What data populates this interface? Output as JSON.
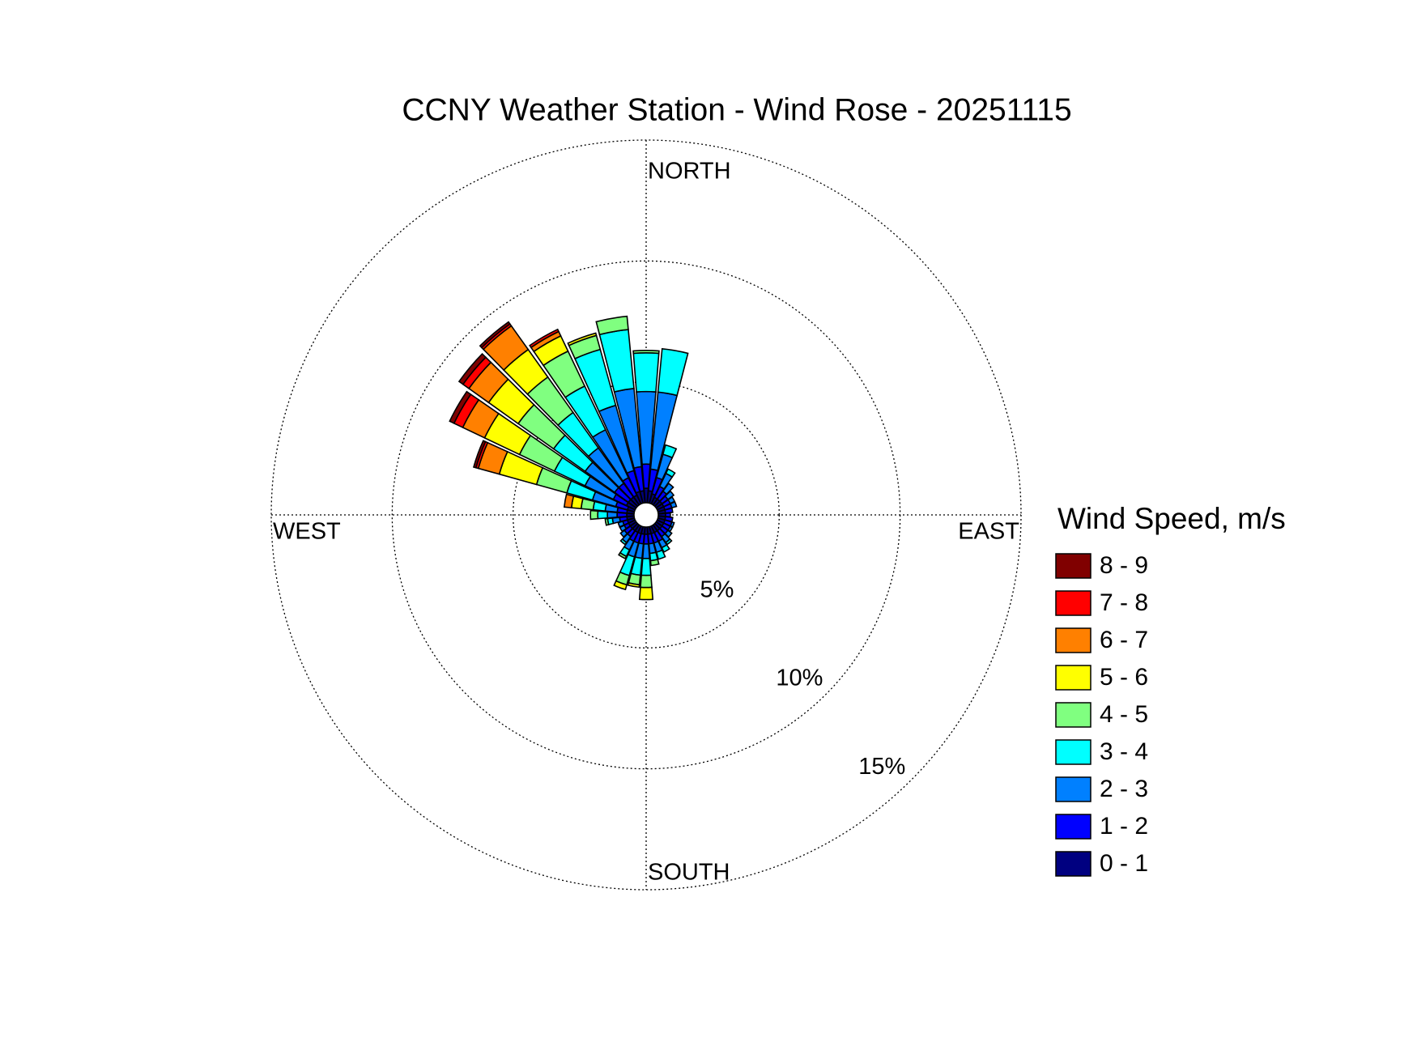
{
  "chart_data": {
    "type": "wind_rose",
    "title": "CCNY Weather Station - Wind Rose - 20251115",
    "legend_title": "Wind Speed, m/s",
    "compass": {
      "north": "NORTH",
      "south": "SOUTH",
      "east": "EAST",
      "west": "WEST"
    },
    "x": [
      0,
      10,
      20,
      30,
      40,
      50,
      60,
      70,
      80,
      90,
      100,
      110,
      120,
      130,
      140,
      150,
      160,
      170,
      180,
      190,
      200,
      210,
      220,
      230,
      240,
      250,
      260,
      270,
      280,
      290,
      300,
      310,
      320,
      330,
      340,
      350
    ],
    "rlim": [
      0,
      15
    ],
    "rticks": [
      {
        "value": 5,
        "label": "5%"
      },
      {
        "value": 10,
        "label": "10%"
      },
      {
        "value": 15,
        "label": "15%"
      }
    ],
    "grid": true,
    "legend": "right",
    "series": [
      {
        "name": "0 - 1",
        "color": "#000080",
        "values": [
          0.6,
          0.5,
          0.4,
          0.3,
          0.3,
          0.3,
          0.3,
          0.3,
          0.3,
          0.3,
          0.3,
          0.3,
          0.3,
          0.3,
          0.3,
          0.3,
          0.3,
          0.3,
          0.3,
          0.3,
          0.3,
          0.3,
          0.3,
          0.3,
          0.3,
          0.3,
          0.3,
          0.3,
          0.3,
          0.3,
          0.4,
          0.4,
          0.4,
          0.4,
          0.5,
          0.5
        ]
      },
      {
        "name": "1 - 2",
        "color": "#0000ff",
        "values": [
          1.0,
          0.9,
          0.7,
          0.5,
          0.4,
          0.3,
          0.3,
          0.3,
          0.3,
          0.2,
          0.3,
          0.3,
          0.3,
          0.3,
          0.3,
          0.4,
          0.4,
          0.4,
          0.4,
          0.4,
          0.4,
          0.4,
          0.3,
          0.3,
          0.2,
          0.2,
          0.3,
          0.4,
          0.4,
          0.5,
          0.6,
          0.7,
          0.7,
          0.8,
          0.9,
          1.0
        ]
      },
      {
        "name": "2 - 3",
        "color": "#0080ff",
        "values": [
          3.0,
          3.2,
          1.0,
          0.6,
          0.4,
          0.3,
          0.2,
          0.2,
          0,
          0,
          0,
          0.1,
          0.1,
          0.2,
          0.3,
          0.3,
          0.4,
          0.4,
          0.6,
          0.6,
          0.6,
          0.4,
          0.3,
          0.2,
          0.2,
          0.2,
          0.3,
          0.4,
          0.5,
          1.0,
          1.3,
          1.5,
          1.8,
          2.2,
          2.8,
          3.25
        ]
      },
      {
        "name": "3 - 4",
        "color": "#00ffff",
        "values": [
          1.6,
          1.8,
          0.4,
          0.2,
          0,
          0,
          0,
          0,
          0,
          0,
          0,
          0,
          0,
          0,
          0.1,
          0.2,
          0.3,
          0.3,
          0.7,
          0.7,
          0.8,
          0.3,
          0.1,
          0,
          0,
          0,
          0.2,
          0.4,
          0.5,
          1.1,
          1.4,
          1.6,
          1.8,
          2.0,
          2.4,
          2.45
        ]
      },
      {
        "name": "4 - 5",
        "color": "#80ff80",
        "values": [
          0.1,
          0,
          0,
          0,
          0,
          0,
          0,
          0,
          0,
          0,
          0,
          0,
          0,
          0,
          0,
          0,
          0,
          0.2,
          0.5,
          0.4,
          0.4,
          0.1,
          0,
          0,
          0,
          0,
          0.1,
          0.3,
          0.5,
          1.3,
          1.6,
          1.8,
          1.8,
          1.6,
          0.6,
          0.55
        ]
      },
      {
        "name": "5 - 6",
        "color": "#ffff00",
        "values": [
          0,
          0,
          0,
          0,
          0,
          0,
          0,
          0,
          0,
          0,
          0,
          0,
          0,
          0,
          0,
          0,
          0,
          0,
          0.5,
          0.1,
          0.2,
          0,
          0,
          0,
          0,
          0,
          0,
          0,
          0.4,
          1.6,
          1.6,
          1.5,
          1.4,
          0.7,
          0.1,
          0
        ]
      },
      {
        "name": "6 - 7",
        "color": "#ff8000",
        "values": [
          0,
          0,
          0,
          0,
          0,
          0,
          0,
          0,
          0,
          0,
          0,
          0,
          0,
          0,
          0,
          0,
          0,
          0,
          0,
          0,
          0,
          0,
          0,
          0,
          0,
          0,
          0,
          0,
          0.3,
          0.9,
          1.0,
          1.0,
          1.2,
          0.2,
          0,
          0
        ]
      },
      {
        "name": "7 - 8",
        "color": "#ff0000",
        "values": [
          0,
          0,
          0,
          0,
          0,
          0,
          0,
          0,
          0,
          0,
          0,
          0,
          0,
          0,
          0,
          0,
          0,
          0,
          0,
          0,
          0,
          0,
          0,
          0,
          0,
          0,
          0,
          0,
          0,
          0.1,
          0.4,
          0.3,
          0.1,
          0.1,
          0,
          0
        ]
      },
      {
        "name": "8 - 9",
        "color": "#800000",
        "values": [
          0,
          0,
          0,
          0,
          0,
          0,
          0,
          0,
          0,
          0,
          0,
          0,
          0,
          0,
          0,
          0,
          0,
          0,
          0,
          0,
          0,
          0,
          0,
          0,
          0,
          0,
          0,
          0,
          0,
          0.1,
          0.2,
          0.2,
          0.1,
          0,
          0,
          0
        ]
      }
    ]
  }
}
